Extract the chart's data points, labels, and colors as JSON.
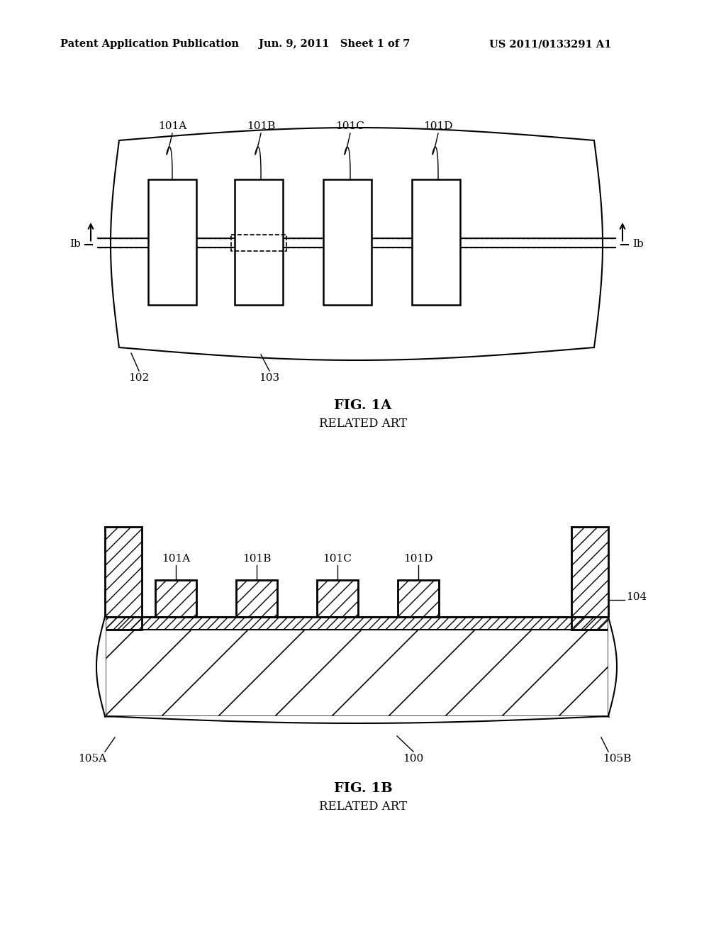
{
  "bg_color": "#ffffff",
  "header_left": "Patent Application Publication",
  "header_center": "Jun. 9, 2011   Sheet 1 of 7",
  "header_right": "US 2011/0133291 A1",
  "fig1a_title": "FIG. 1A",
  "fig1a_subtitle": "RELATED ART",
  "fig1b_title": "FIG. 1B",
  "fig1b_subtitle": "RELATED ART",
  "label_101A": "101A",
  "label_101B": "101B",
  "label_101C": "101C",
  "label_101D": "101D",
  "label_102": "102",
  "label_103": "103",
  "label_104": "104",
  "label_105A": "105A",
  "label_105B": "105B",
  "label_100": "100",
  "label_Ib": "Ib"
}
